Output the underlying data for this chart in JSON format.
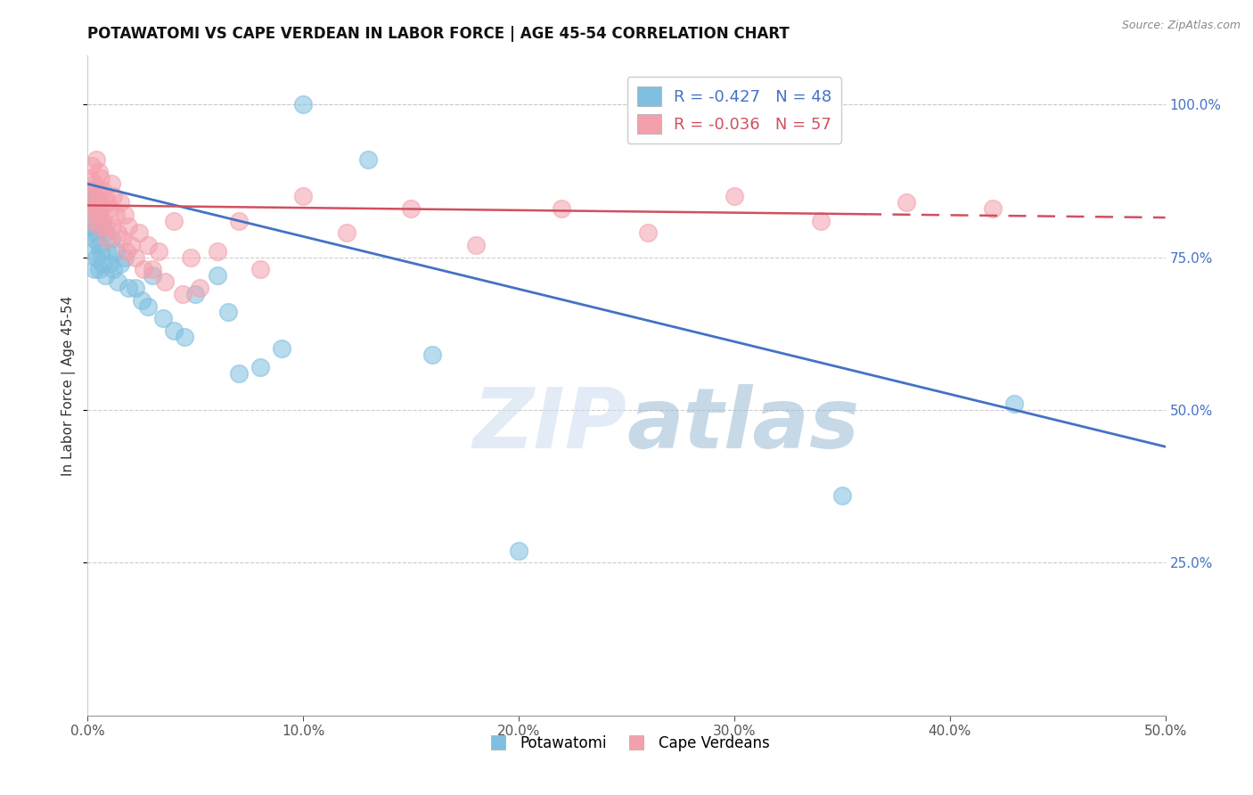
{
  "title": "POTAWATOMI VS CAPE VERDEAN IN LABOR FORCE | AGE 45-54 CORRELATION CHART",
  "source": "Source: ZipAtlas.com",
  "ylabel": "In Labor Force | Age 45-54",
  "xlim": [
    0.0,
    0.5
  ],
  "ylim": [
    0.0,
    1.08
  ],
  "xtick_vals": [
    0.0,
    0.1,
    0.2,
    0.3,
    0.4,
    0.5
  ],
  "ytick_vals": [
    0.25,
    0.5,
    0.75,
    1.0
  ],
  "blue_color": "#7fbfdf",
  "pink_color": "#f4a0ac",
  "blue_line_color": "#4472c4",
  "pink_line_color": "#d05060",
  "blue_R": -0.427,
  "blue_N": 48,
  "pink_R": -0.036,
  "pink_N": 57,
  "watermark_zip": "ZIP",
  "watermark_atlas": "atlas",
  "legend_label_blue": "Potawatomi",
  "legend_label_pink": "Cape Verdeans",
  "blue_line_x0": 0.0,
  "blue_line_y0": 0.87,
  "blue_line_x1": 0.5,
  "blue_line_y1": 0.44,
  "pink_line_x0": 0.0,
  "pink_line_y0": 0.835,
  "pink_line_x1": 0.5,
  "pink_line_y1": 0.815,
  "blue_scatter_x": [
    0.001,
    0.001,
    0.002,
    0.002,
    0.002,
    0.003,
    0.003,
    0.003,
    0.004,
    0.004,
    0.004,
    0.005,
    0.005,
    0.005,
    0.006,
    0.006,
    0.007,
    0.007,
    0.008,
    0.008,
    0.009,
    0.01,
    0.011,
    0.012,
    0.013,
    0.014,
    0.015,
    0.017,
    0.019,
    0.022,
    0.025,
    0.028,
    0.03,
    0.035,
    0.04,
    0.045,
    0.05,
    0.06,
    0.065,
    0.07,
    0.08,
    0.09,
    0.1,
    0.13,
    0.16,
    0.2,
    0.35,
    0.43
  ],
  "blue_scatter_y": [
    0.82,
    0.79,
    0.86,
    0.8,
    0.76,
    0.85,
    0.78,
    0.73,
    0.84,
    0.79,
    0.75,
    0.83,
    0.77,
    0.73,
    0.81,
    0.76,
    0.8,
    0.74,
    0.79,
    0.72,
    0.76,
    0.74,
    0.78,
    0.73,
    0.76,
    0.71,
    0.74,
    0.75,
    0.7,
    0.7,
    0.68,
    0.67,
    0.72,
    0.65,
    0.63,
    0.62,
    0.69,
    0.72,
    0.66,
    0.56,
    0.57,
    0.6,
    1.0,
    0.91,
    0.59,
    0.27,
    0.36,
    0.51
  ],
  "pink_scatter_x": [
    0.001,
    0.001,
    0.002,
    0.002,
    0.002,
    0.003,
    0.003,
    0.004,
    0.004,
    0.004,
    0.005,
    0.005,
    0.005,
    0.006,
    0.006,
    0.007,
    0.007,
    0.008,
    0.008,
    0.009,
    0.009,
    0.01,
    0.011,
    0.011,
    0.012,
    0.013,
    0.014,
    0.015,
    0.016,
    0.017,
    0.018,
    0.019,
    0.02,
    0.022,
    0.024,
    0.026,
    0.028,
    0.03,
    0.033,
    0.036,
    0.04,
    0.044,
    0.048,
    0.052,
    0.06,
    0.07,
    0.08,
    0.1,
    0.12,
    0.15,
    0.18,
    0.22,
    0.26,
    0.3,
    0.34,
    0.38,
    0.42
  ],
  "pink_scatter_y": [
    0.88,
    0.84,
    0.9,
    0.85,
    0.81,
    0.87,
    0.83,
    0.91,
    0.86,
    0.82,
    0.89,
    0.84,
    0.8,
    0.88,
    0.83,
    0.86,
    0.81,
    0.85,
    0.8,
    0.84,
    0.78,
    0.83,
    0.87,
    0.8,
    0.85,
    0.82,
    0.79,
    0.84,
    0.78,
    0.82,
    0.76,
    0.8,
    0.77,
    0.75,
    0.79,
    0.73,
    0.77,
    0.73,
    0.76,
    0.71,
    0.81,
    0.69,
    0.75,
    0.7,
    0.76,
    0.81,
    0.73,
    0.85,
    0.79,
    0.83,
    0.77,
    0.83,
    0.79,
    0.85,
    0.81,
    0.84,
    0.83
  ]
}
